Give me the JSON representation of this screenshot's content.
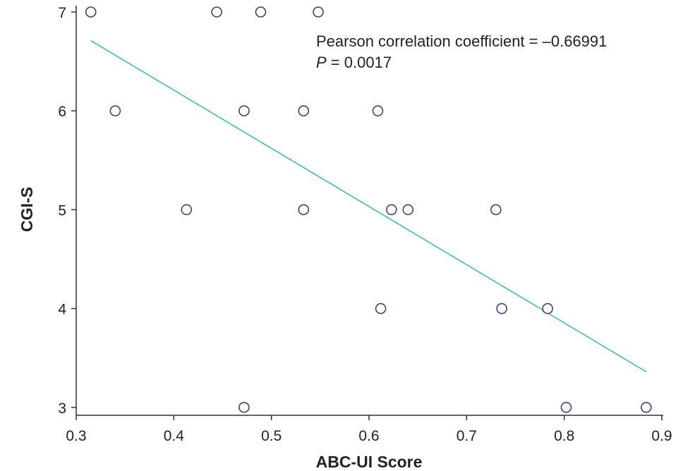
{
  "chart_data": {
    "type": "scatter",
    "xlabel": "ABC-UI Score",
    "ylabel": "CGI-S",
    "xlim": [
      0.3,
      0.9
    ],
    "ylim": [
      2.92,
      7.0
    ],
    "xticks": [
      "0.3",
      "0.4",
      "0.5",
      "0.6",
      "0.7",
      "0.8",
      "0.9"
    ],
    "yticks": [
      "3",
      "4",
      "5",
      "6",
      "7"
    ],
    "points": [
      {
        "x": 0.315,
        "y": 7
      },
      {
        "x": 0.444,
        "y": 7
      },
      {
        "x": 0.489,
        "y": 7
      },
      {
        "x": 0.548,
        "y": 7
      },
      {
        "x": 0.34,
        "y": 6
      },
      {
        "x": 0.472,
        "y": 6
      },
      {
        "x": 0.533,
        "y": 6
      },
      {
        "x": 0.609,
        "y": 6
      },
      {
        "x": 0.413,
        "y": 5
      },
      {
        "x": 0.533,
        "y": 5
      },
      {
        "x": 0.623,
        "y": 5
      },
      {
        "x": 0.64,
        "y": 5
      },
      {
        "x": 0.73,
        "y": 5
      },
      {
        "x": 0.612,
        "y": 4
      },
      {
        "x": 0.736,
        "y": 4
      },
      {
        "x": 0.783,
        "y": 4
      },
      {
        "x": 0.472,
        "y": 3
      },
      {
        "x": 0.802,
        "y": 3
      },
      {
        "x": 0.884,
        "y": 3
      }
    ],
    "trendline": {
      "x": [
        0.315,
        0.884
      ],
      "y": [
        6.71,
        3.36
      ]
    },
    "annotation": {
      "line1": "Pearson correlation coefficient = –0.66991",
      "p_symbol": "P",
      "p_value": " = 0.0017"
    },
    "grid": false,
    "colors": {
      "points": "#4b3a7a",
      "trendline": "#3fbcb8"
    }
  }
}
